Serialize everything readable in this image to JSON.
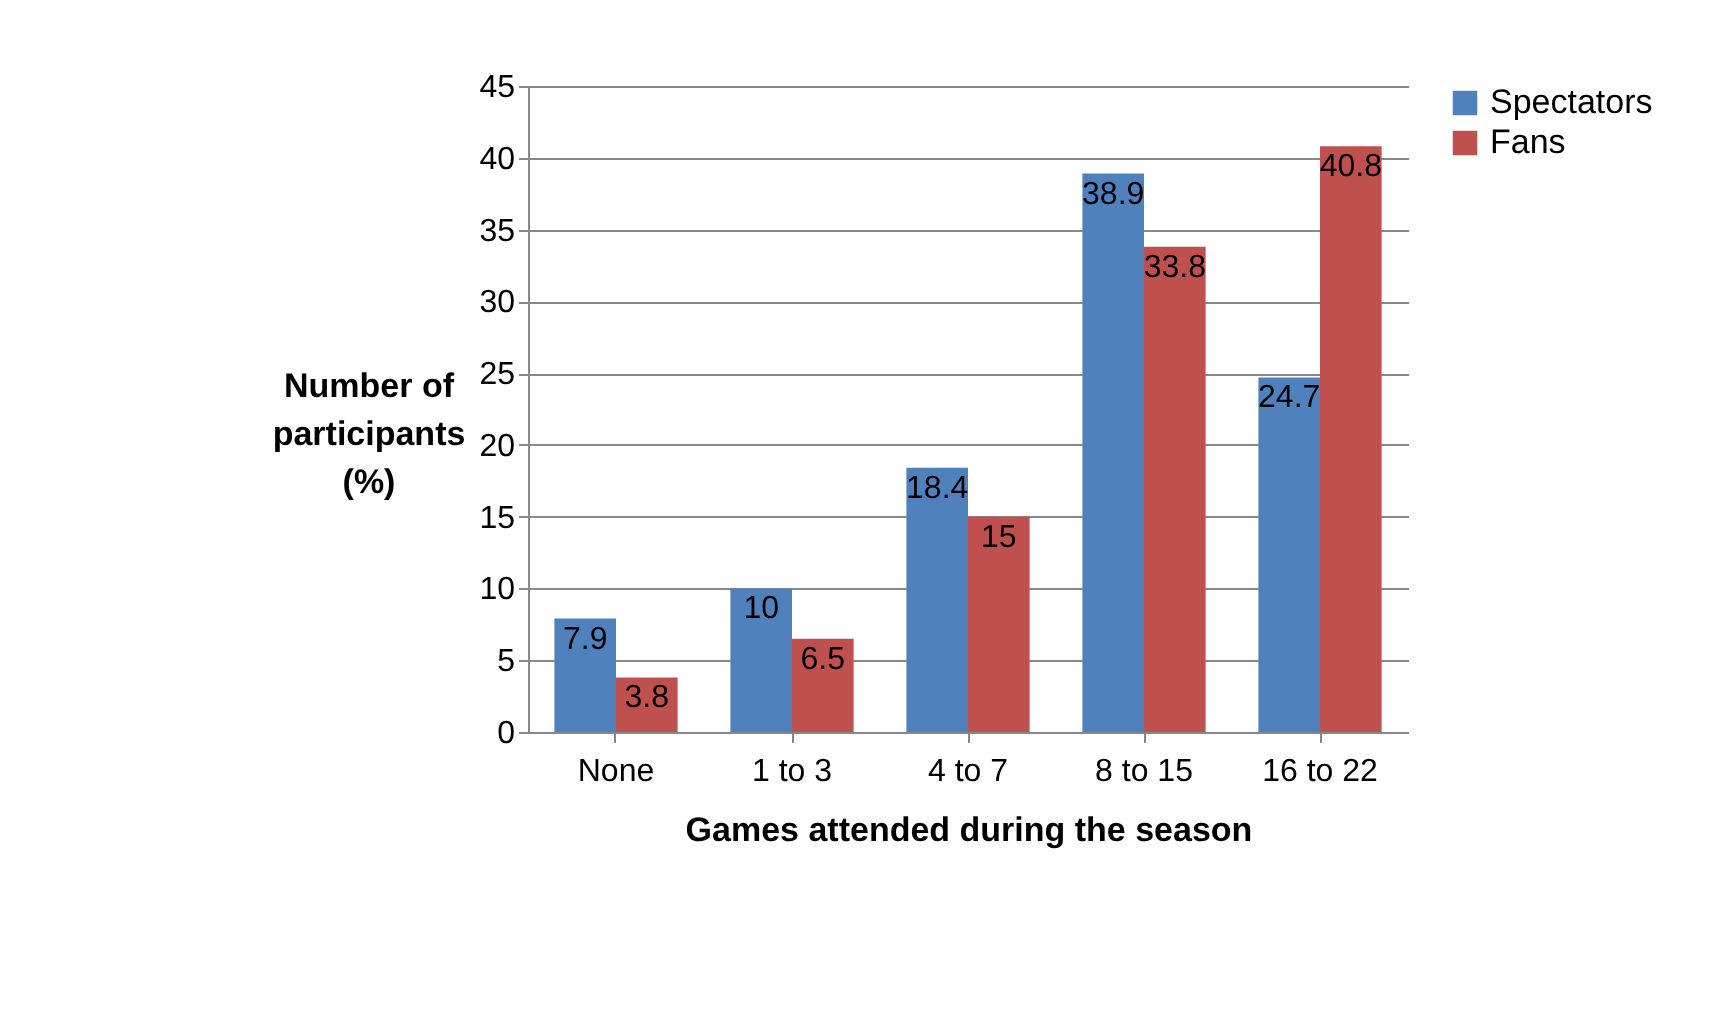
{
  "chart_data": {
    "type": "bar",
    "xlabel": "Games attended during the season",
    "ylabel": "Number of participants (%)",
    "categories": [
      "None",
      "1 to 3",
      "4 to 7",
      "8 to 15",
      "16 to 22"
    ],
    "series": [
      {
        "name": "Spectators",
        "color": "#4f81bd",
        "values": [
          7.9,
          10,
          18.4,
          38.9,
          24.7
        ]
      },
      {
        "name": "Fans",
        "color": "#c0504d",
        "values": [
          3.8,
          6.5,
          15,
          33.8,
          40.8
        ]
      }
    ],
    "ylim": [
      0,
      45
    ],
    "yticks": [
      0,
      5,
      10,
      15,
      20,
      25,
      30,
      35,
      40,
      45
    ],
    "grid": "y",
    "legend": "right",
    "data_labels": true
  }
}
